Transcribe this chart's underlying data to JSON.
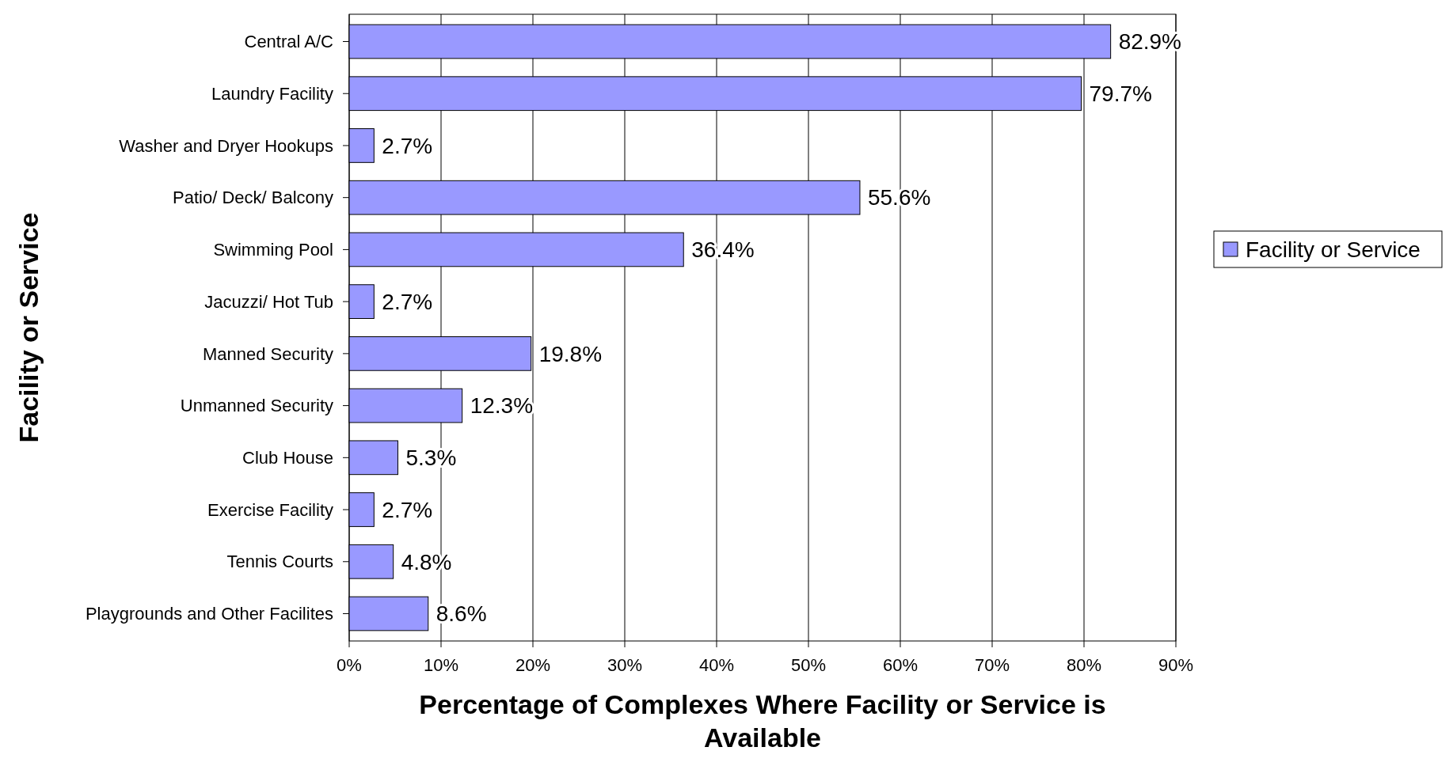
{
  "chart_data": {
    "type": "bar",
    "orientation": "horizontal",
    "xlabel": "Percentage of Complexes Where Facility or Service is Available",
    "ylabel": "Facility or Service",
    "categories": [
      "Central A/C",
      "Laundry Facility",
      "Washer and Dryer Hookups",
      "Patio/ Deck/ Balcony",
      "Swimming Pool",
      "Jacuzzi/ Hot Tub",
      "Manned Security",
      "Unmanned Security",
      "Club House",
      "Exercise Facility",
      "Tennis Courts",
      "Playgrounds and Other Facilites"
    ],
    "series": [
      {
        "name": "Facility or Service",
        "color": "#9999ff",
        "values": [
          82.9,
          79.7,
          2.7,
          55.6,
          36.4,
          2.7,
          19.8,
          12.3,
          5.3,
          2.7,
          4.8,
          8.6
        ],
        "value_labels": [
          "82.9%",
          "79.7%",
          "2.7%",
          "55.6%",
          "36.4%",
          "2.7%",
          "19.8%",
          "12.3%",
          "5.3%",
          "2.7%",
          "4.8%",
          "8.6%"
        ]
      }
    ],
    "xlim": [
      0,
      90
    ],
    "xticks": [
      {
        "value": 0,
        "label": "0%"
      },
      {
        "value": 10,
        "label": "10%"
      },
      {
        "value": 20,
        "label": "20%"
      },
      {
        "value": 30,
        "label": "30%"
      },
      {
        "value": 40,
        "label": "40%"
      },
      {
        "value": 50,
        "label": "50%"
      },
      {
        "value": 60,
        "label": "60%"
      },
      {
        "value": 70,
        "label": "70%"
      },
      {
        "value": 80,
        "label": "80%"
      },
      {
        "value": 90,
        "label": "90%"
      }
    ],
    "grid": "x",
    "legend": "right"
  }
}
